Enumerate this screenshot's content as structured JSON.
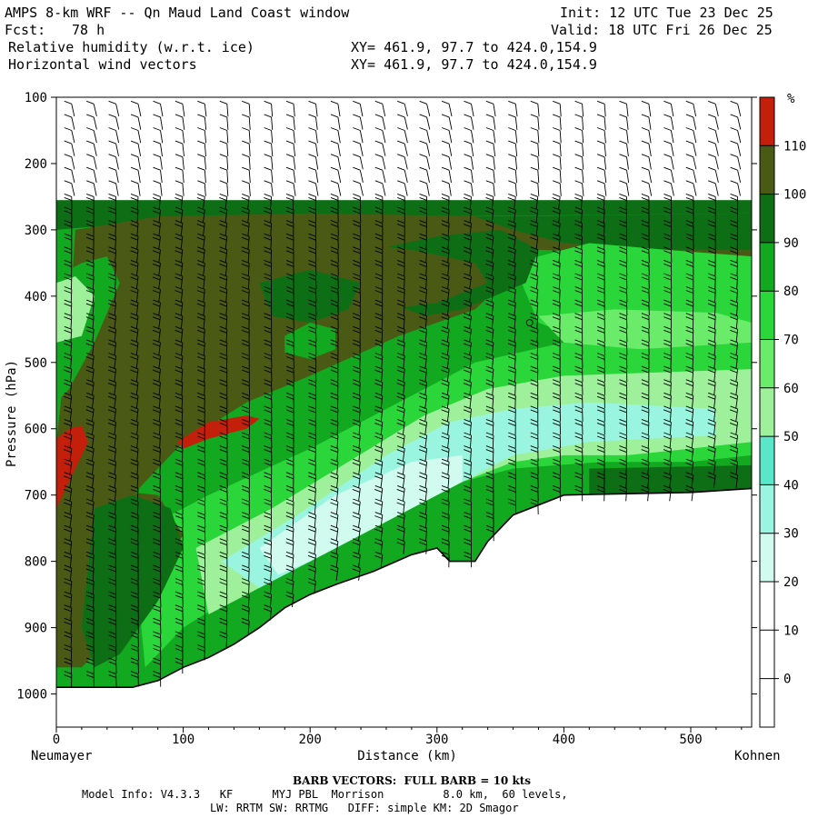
{
  "header": {
    "title": "AMPS 8-km WRF -- Qn Maud Land Coast window",
    "init": "Init: 12 UTC Tue 23 Dec 25",
    "fcst_label": "Fcst:",
    "fcst_value": "78 h",
    "valid": "Valid: 18 UTC Fri 26 Dec 25",
    "field1": "Relative humidity (w.r.t. ice)",
    "field2": "Horizontal wind vectors",
    "xy1": "XY= 461.9, 97.7 to 424.0,154.9",
    "xy2": "XY= 461.9, 97.7 to 424.0,154.9"
  },
  "footer": {
    "barb": "BARB VECTORS:  FULL BARB = 10 kts",
    "model_info": "Model Info: V4.3.3   KF      MYJ PBL  Morrison         8.0 km,  60 levels,",
    "physics": "LW: RRTM SW: RRTMG   DIFF: simple KM: 2D Smagor"
  },
  "chart_data": {
    "type": "cross-section",
    "xlabel": "Distance (km)",
    "ylabel": "Pressure (hPa)",
    "x_left_label": "Neumayer",
    "x_right_label": "Kohnen",
    "xlim": [
      0,
      548
    ],
    "ylim": [
      1050,
      100
    ],
    "x_ticks": [
      0,
      100,
      200,
      300,
      400,
      500
    ],
    "y_ticks": [
      100,
      200,
      300,
      400,
      500,
      600,
      700,
      800,
      900,
      1000
    ],
    "colorbar": {
      "unit": "%",
      "levels": [
        110,
        100,
        90,
        80,
        70,
        60,
        50,
        40,
        30,
        20,
        10,
        0
      ],
      "colors": [
        "#c41f0a",
        "#4a5a14",
        "#0e6e16",
        "#12a820",
        "#2ad63a",
        "#6aec6a",
        "#9ef09a",
        "#5ae6c8",
        "#9af5e0",
        "#d2fbf0",
        "#ffffff",
        "#ffffff"
      ]
    },
    "terrain": [
      [
        0,
        990
      ],
      [
        20,
        990
      ],
      [
        60,
        990
      ],
      [
        80,
        980
      ],
      [
        100,
        960
      ],
      [
        120,
        945
      ],
      [
        140,
        925
      ],
      [
        160,
        900
      ],
      [
        180,
        870
      ],
      [
        200,
        850
      ],
      [
        220,
        835
      ],
      [
        250,
        815
      ],
      [
        280,
        790
      ],
      [
        300,
        780
      ],
      [
        310,
        800
      ],
      [
        330,
        800
      ],
      [
        340,
        770
      ],
      [
        360,
        730
      ],
      [
        400,
        700
      ],
      [
        450,
        698
      ],
      [
        500,
        696
      ],
      [
        548,
        690
      ]
    ],
    "annotations": [
      "o"
    ]
  }
}
